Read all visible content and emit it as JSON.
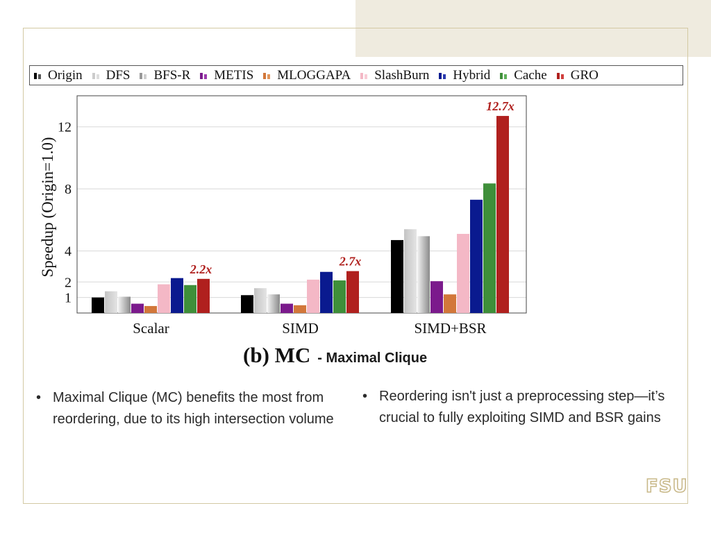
{
  "colors": {
    "Origin": "#000000",
    "DFS": "#cccccc",
    "BFS-R": "#bdbdbd",
    "METIS": "#7b1a8c",
    "MLOGGAPA": "#d2773a",
    "SlashBurn": "#f4b8c6",
    "Hybrid": "#0a1a8f",
    "Cache": "#3f8f3a",
    "GRO": "#b0201e"
  },
  "legend": {
    "items": [
      {
        "label": "Origin",
        "color": "#000000",
        "color2": "#555555"
      },
      {
        "label": "DFS",
        "color": "#cccccc",
        "color2": "#dddddd"
      },
      {
        "label": "BFS-R",
        "color": "#999999",
        "color2": "#cfcfcf"
      },
      {
        "label": "METIS",
        "color": "#7b1a8c",
        "color2": "#9b3aac"
      },
      {
        "label": "MLOGGAPA",
        "color": "#d2773a",
        "color2": "#e0955c"
      },
      {
        "label": "SlashBurn",
        "color": "#f4b8c6",
        "color2": "#f8ccd6"
      },
      {
        "label": "Hybrid",
        "color": "#0a1a8f",
        "color2": "#2a3aaf"
      },
      {
        "label": "Cache",
        "color": "#3f8f3a",
        "color2": "#5faf5a"
      },
      {
        "label": "GRO",
        "color": "#b0201e",
        "color2": "#d0403e"
      }
    ]
  },
  "chart_data": {
    "type": "bar",
    "ylabel": "Speedup (Origin=1.0)",
    "xlabel": "",
    "ylim": [
      0,
      14
    ],
    "yticks": [
      1,
      2,
      4,
      8,
      12
    ],
    "grid": true,
    "categories": [
      "Scalar",
      "SIMD",
      "SIMD+BSR"
    ],
    "series": [
      {
        "name": "Origin",
        "values": [
          1.0,
          1.15,
          4.7
        ]
      },
      {
        "name": "DFS",
        "values": [
          1.4,
          1.6,
          5.4
        ]
      },
      {
        "name": "BFS-R",
        "values": [
          1.05,
          1.2,
          4.95
        ]
      },
      {
        "name": "METIS",
        "values": [
          0.6,
          0.6,
          2.05
        ]
      },
      {
        "name": "MLOGGAPA",
        "values": [
          0.45,
          0.5,
          1.2
        ]
      },
      {
        "name": "SlashBurn",
        "values": [
          1.85,
          2.15,
          5.1
        ]
      },
      {
        "name": "Hybrid",
        "values": [
          2.25,
          2.65,
          7.3
        ]
      },
      {
        "name": "Cache",
        "values": [
          1.8,
          2.1,
          8.35
        ]
      },
      {
        "name": "GRO",
        "values": [
          2.2,
          2.7,
          12.7
        ]
      }
    ],
    "annotations": [
      {
        "category": "Scalar",
        "series": "GRO",
        "text": "2.2x"
      },
      {
        "category": "SIMD",
        "series": "GRO",
        "text": "2.7x"
      },
      {
        "category": "SIMD+BSR",
        "series": "GRO",
        "text": "12.7x"
      }
    ]
  },
  "caption": {
    "main": "(b) MC",
    "sub": "- Maximal Clique"
  },
  "bullets": {
    "left": "Maximal Clique (MC) benefits the most from reordering, due to its high intersection volume",
    "right": "Reordering isn't just a preprocessing step—it’s crucial to fully exploiting SIMD and BSR gains",
    "marker": "•"
  },
  "logo": {
    "text": "FSU"
  }
}
